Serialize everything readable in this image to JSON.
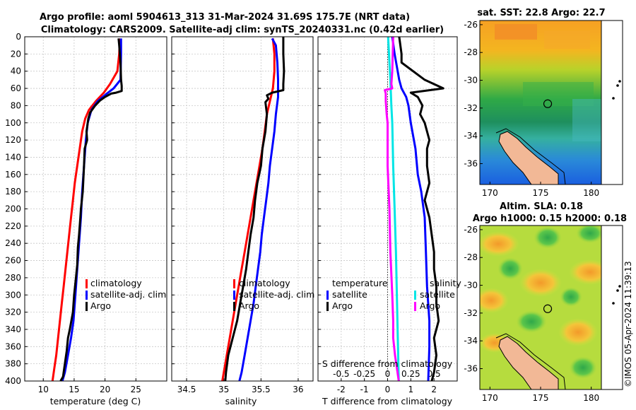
{
  "header": {
    "title_line1": "Argo profile: aoml 5904613_313 31-Mar-2024 31.69S 175.7E (NRT data)",
    "title_line2": "Climatology: CARS2009. Satellite-adj clim: synTS_20240331.nc (0.42d earlier)"
  },
  "colors": {
    "climatology": "#ff0000",
    "satellite": "#0000ff",
    "argo": "#000000",
    "temp_diff_sat": "#0000ff",
    "sal_diff_sat": "#00e5e5",
    "sal_diff_argo": "#ff00ff"
  },
  "chart_data": [
    {
      "type": "line",
      "name": "temperature-profile",
      "xlabel": "temperature (deg C)",
      "ylabel": "",
      "xlim": [
        7,
        30
      ],
      "ylim": [
        0,
        400
      ],
      "xticks": [
        10,
        15,
        20,
        25
      ],
      "yticks": [
        0,
        20,
        40,
        60,
        80,
        100,
        120,
        140,
        160,
        180,
        200,
        220,
        240,
        260,
        280,
        300,
        320,
        340,
        360,
        380,
        400
      ],
      "legend": [
        "climatology",
        "satellite-adj. clim",
        "Argo"
      ],
      "series": [
        {
          "name": "climatology",
          "points": [
            [
              22.4,
              2
            ],
            [
              22.3,
              20
            ],
            [
              22.0,
              40
            ],
            [
              20.8,
              55
            ],
            [
              19.8,
              65
            ],
            [
              18.5,
              75
            ],
            [
              17.4,
              85
            ],
            [
              16.8,
              95
            ],
            [
              16.3,
              110
            ],
            [
              15.9,
              130
            ],
            [
              15.5,
              150
            ],
            [
              15.1,
              170
            ],
            [
              14.8,
              190
            ],
            [
              14.5,
              210
            ],
            [
              14.2,
              230
            ],
            [
              13.9,
              250
            ],
            [
              13.6,
              270
            ],
            [
              13.3,
              290
            ],
            [
              13.0,
              310
            ],
            [
              12.7,
              330
            ],
            [
              12.4,
              350
            ],
            [
              12.1,
              370
            ],
            [
              11.8,
              385
            ],
            [
              11.5,
              400
            ]
          ]
        },
        {
          "name": "satellite-adj. clim",
          "points": [
            [
              22.6,
              2
            ],
            [
              22.6,
              20
            ],
            [
              22.5,
              50
            ],
            [
              21.4,
              60
            ],
            [
              20.3,
              66
            ],
            [
              18.8,
              75
            ],
            [
              17.8,
              85
            ],
            [
              17.2,
              100
            ],
            [
              16.9,
              120
            ],
            [
              16.6,
              150
            ],
            [
              16.3,
              180
            ],
            [
              16.1,
              210
            ],
            [
              15.8,
              240
            ],
            [
              15.5,
              270
            ],
            [
              15.2,
              300
            ],
            [
              14.9,
              330
            ],
            [
              14.5,
              350
            ],
            [
              14.0,
              370
            ],
            [
              13.5,
              390
            ],
            [
              13.1,
              400
            ]
          ]
        },
        {
          "name": "Argo",
          "points": [
            [
              22.2,
              2
            ],
            [
              22.3,
              10
            ],
            [
              22.5,
              30
            ],
            [
              22.6,
              50
            ],
            [
              22.7,
              57
            ],
            [
              22.7,
              63
            ],
            [
              21.8,
              65
            ],
            [
              21.0,
              66
            ],
            [
              20.0,
              70
            ],
            [
              19.2,
              74
            ],
            [
              18.4,
              80
            ],
            [
              17.6,
              88
            ],
            [
              17.3,
              95
            ],
            [
              17.0,
              110
            ],
            [
              17.1,
              120
            ],
            [
              16.7,
              130
            ],
            [
              16.6,
              150
            ],
            [
              16.5,
              165
            ],
            [
              16.4,
              180
            ],
            [
              16.1,
              200
            ],
            [
              16.0,
              210
            ],
            [
              15.8,
              230
            ],
            [
              15.6,
              245
            ],
            [
              15.5,
              265
            ],
            [
              15.3,
              280
            ],
            [
              15.0,
              300
            ],
            [
              14.8,
              320
            ],
            [
              14.3,
              340
            ],
            [
              14.0,
              350
            ],
            [
              13.8,
              365
            ],
            [
              13.5,
              380
            ],
            [
              13.2,
              395
            ],
            [
              12.8,
              400
            ]
          ]
        }
      ]
    },
    {
      "type": "line",
      "name": "salinity-profile",
      "xlabel": "salinity",
      "xlim": [
        34.3,
        36.2
      ],
      "ylim": [
        0,
        400
      ],
      "xticks": [
        34.5,
        35,
        35.5,
        36
      ],
      "legend": [
        "climatology",
        "satellite-adj. clim",
        "Argo"
      ],
      "series": [
        {
          "name": "climatology",
          "points": [
            [
              35.66,
              2
            ],
            [
              35.68,
              20
            ],
            [
              35.68,
              40
            ],
            [
              35.66,
              60
            ],
            [
              35.62,
              75
            ],
            [
              35.58,
              90
            ],
            [
              35.55,
              110
            ],
            [
              35.52,
              130
            ],
            [
              35.48,
              150
            ],
            [
              35.44,
              170
            ],
            [
              35.4,
              190
            ],
            [
              35.36,
              210
            ],
            [
              35.32,
              230
            ],
            [
              35.28,
              250
            ],
            [
              35.24,
              270
            ],
            [
              35.2,
              290
            ],
            [
              35.16,
              310
            ],
            [
              35.12,
              330
            ],
            [
              35.08,
              350
            ],
            [
              35.04,
              370
            ],
            [
              35.0,
              390
            ],
            [
              34.98,
              400
            ]
          ]
        },
        {
          "name": "satellite-adj. clim",
          "points": [
            [
              35.65,
              2
            ],
            [
              35.7,
              10
            ],
            [
              35.72,
              30
            ],
            [
              35.73,
              50
            ],
            [
              35.73,
              70
            ],
            [
              35.7,
              90
            ],
            [
              35.68,
              110
            ],
            [
              35.65,
              130
            ],
            [
              35.62,
              150
            ],
            [
              35.6,
              170
            ],
            [
              35.57,
              190
            ],
            [
              35.54,
              210
            ],
            [
              35.51,
              230
            ],
            [
              35.49,
              250
            ],
            [
              35.46,
              270
            ],
            [
              35.43,
              290
            ],
            [
              35.4,
              310
            ],
            [
              35.36,
              330
            ],
            [
              35.32,
              350
            ],
            [
              35.28,
              370
            ],
            [
              35.24,
              390
            ],
            [
              35.21,
              400
            ]
          ]
        },
        {
          "name": "Argo",
          "points": [
            [
              35.8,
              0
            ],
            [
              35.8,
              20
            ],
            [
              35.81,
              40
            ],
            [
              35.8,
              55
            ],
            [
              35.8,
              62
            ],
            [
              35.65,
              65
            ],
            [
              35.58,
              68
            ],
            [
              35.6,
              72
            ],
            [
              35.56,
              76
            ],
            [
              35.58,
              90
            ],
            [
              35.56,
              110
            ],
            [
              35.52,
              130
            ],
            [
              35.5,
              150
            ],
            [
              35.45,
              170
            ],
            [
              35.42,
              190
            ],
            [
              35.4,
              210
            ],
            [
              35.36,
              230
            ],
            [
              35.33,
              250
            ],
            [
              35.3,
              270
            ],
            [
              35.26,
              290
            ],
            [
              35.22,
              310
            ],
            [
              35.18,
              330
            ],
            [
              35.12,
              350
            ],
            [
              35.06,
              370
            ],
            [
              35.03,
              390
            ],
            [
              35.02,
              400
            ]
          ]
        }
      ]
    },
    {
      "type": "line",
      "name": "difference-profile",
      "xlabel": "T difference from climatology",
      "x2label": "S difference from climatology",
      "xlim": [
        -3,
        3
      ],
      "x2lim": [
        -0.75,
        0.75
      ],
      "ylim": [
        0,
        400
      ],
      "xticks": [
        -2,
        -1,
        0,
        1,
        2
      ],
      "x2ticks": [
        -0.5,
        -0.25,
        0,
        0.25,
        0.5
      ],
      "x2ticklabels": [
        "-0.5",
        "-0.25",
        "0",
        "0.25",
        "0.5"
      ],
      "legend_left_title": "temperature",
      "legend_right_title": "salinity",
      "legend_left": [
        "satellite",
        "Argo"
      ],
      "legend_right": [
        "satellite",
        "Argo"
      ],
      "series": [
        {
          "name": "T satellite",
          "points": [
            [
              0.2,
              0
            ],
            [
              0.3,
              20
            ],
            [
              0.5,
              50
            ],
            [
              0.6,
              60
            ],
            [
              0.8,
              70
            ],
            [
              0.9,
              80
            ],
            [
              1.0,
              100
            ],
            [
              1.2,
              130
            ],
            [
              1.3,
              160
            ],
            [
              1.45,
              180
            ],
            [
              1.6,
              210
            ],
            [
              1.65,
              250
            ],
            [
              1.7,
              290
            ],
            [
              1.8,
              330
            ],
            [
              1.8,
              360
            ],
            [
              1.75,
              400
            ]
          ]
        },
        {
          "name": "T Argo",
          "points": [
            [
              0.5,
              0
            ],
            [
              0.6,
              20
            ],
            [
              0.6,
              30
            ],
            [
              1.6,
              50
            ],
            [
              2.4,
              60
            ],
            [
              1.0,
              65
            ],
            [
              1.3,
              70
            ],
            [
              1.5,
              80
            ],
            [
              1.4,
              90
            ],
            [
              1.6,
              100
            ],
            [
              1.8,
              120
            ],
            [
              1.7,
              130
            ],
            [
              1.7,
              150
            ],
            [
              1.8,
              170
            ],
            [
              1.6,
              190
            ],
            [
              1.8,
              210
            ],
            [
              1.9,
              230
            ],
            [
              2.0,
              250
            ],
            [
              2.0,
              270
            ],
            [
              2.1,
              290
            ],
            [
              2.1,
              310
            ],
            [
              2.2,
              330
            ],
            [
              2.0,
              350
            ],
            [
              2.1,
              370
            ],
            [
              2.0,
              390
            ],
            [
              1.9,
              400
            ]
          ]
        },
        {
          "name": "S satellite",
          "points": [
            [
              0.005,
              0
            ],
            [
              0.015,
              20
            ],
            [
              0.03,
              50
            ],
            [
              0.04,
              80
            ],
            [
              0.05,
              100
            ],
            [
              0.06,
              150
            ],
            [
              0.075,
              200
            ],
            [
              0.09,
              250
            ],
            [
              0.1,
              300
            ],
            [
              0.11,
              350
            ],
            [
              0.12,
              400
            ]
          ]
        },
        {
          "name": "S Argo",
          "points": [
            [
              0.06,
              0
            ],
            [
              0.05,
              40
            ],
            [
              0.04,
              55
            ],
            [
              0.05,
              60
            ],
            [
              -0.03,
              62
            ],
            [
              -0.02,
              66
            ],
            [
              -0.02,
              75
            ],
            [
              -0.01,
              90
            ],
            [
              0.0,
              100
            ],
            [
              0.0,
              150
            ],
            [
              0.02,
              200
            ],
            [
              0.03,
              250
            ],
            [
              0.05,
              300
            ],
            [
              0.06,
              330
            ],
            [
              0.06,
              350
            ],
            [
              0.08,
              370
            ],
            [
              0.12,
              400
            ]
          ]
        }
      ]
    },
    {
      "type": "heatmap",
      "name": "sst-map",
      "title": "sat. SST: 22.8 Argo: 22.7",
      "xticks": [
        170,
        175,
        180
      ],
      "yticks": [
        -26,
        -28,
        -30,
        -32,
        -34,
        -36
      ],
      "xlim": [
        169,
        181
      ],
      "ylim": [
        -37.5,
        -25.7
      ],
      "argo_position": [
        175.7,
        -31.69
      ]
    },
    {
      "type": "heatmap",
      "name": "sla-map",
      "title_line1": "Altim. SLA: 0.18",
      "title_line2": "Argo h1000: 0.15 h2000: 0.18",
      "xticks": [
        170,
        175,
        180
      ],
      "yticks": [
        -26,
        -28,
        -30,
        -32,
        -34,
        -36
      ],
      "xlim": [
        169,
        181
      ],
      "ylim": [
        -37.5,
        -25.7
      ],
      "argo_position": [
        175.7,
        -31.69
      ]
    }
  ],
  "credit": "©IMOS 05-Apr-2024 11:39:13"
}
